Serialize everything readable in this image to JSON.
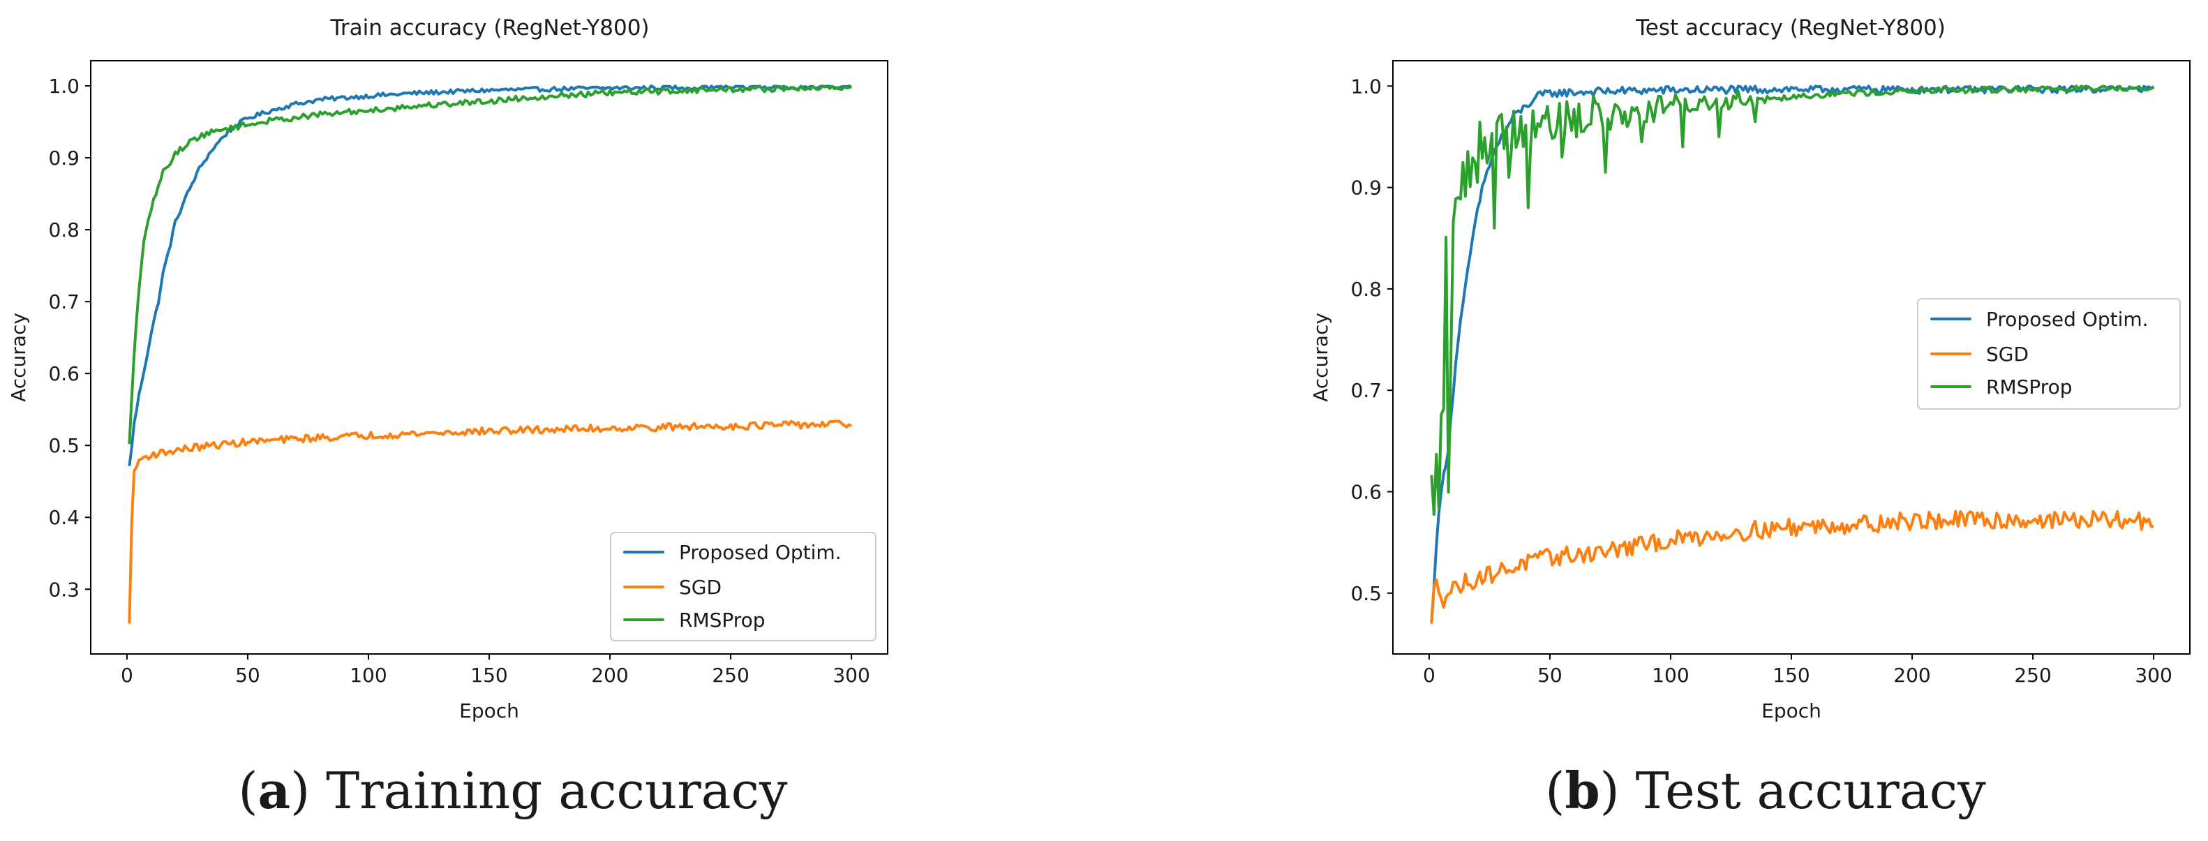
{
  "chart_data": [
    {
      "type": "line",
      "title": "Train accuracy (RegNet-Y800)",
      "xlabel": "Epoch",
      "ylabel": "Accuracy",
      "xlim": [
        -15,
        315
      ],
      "ylim": [
        0.21,
        1.035
      ],
      "xticks": [
        0,
        50,
        100,
        150,
        200,
        250,
        300
      ],
      "yticks": [
        0.3,
        0.4,
        0.5,
        0.6,
        0.7,
        0.8,
        0.9,
        1.0
      ],
      "legend_position": "lower-right",
      "series": [
        {
          "name": "Proposed Optim.",
          "color": "#1f77b4",
          "points": [
            [
              1,
              0.47
            ],
            [
              3,
              0.53
            ],
            [
              5,
              0.57
            ],
            [
              8,
              0.62
            ],
            [
              10,
              0.655
            ],
            [
              13,
              0.7
            ],
            [
              15,
              0.74
            ],
            [
              18,
              0.78
            ],
            [
              20,
              0.81
            ],
            [
              25,
              0.85
            ],
            [
              30,
              0.885
            ],
            [
              35,
              0.91
            ],
            [
              40,
              0.93
            ],
            [
              45,
              0.945
            ],
            [
              50,
              0.955
            ],
            [
              60,
              0.966
            ],
            [
              70,
              0.975
            ],
            [
              80,
              0.981
            ],
            [
              100,
              0.986
            ],
            [
              120,
              0.99
            ],
            [
              150,
              0.994
            ],
            [
              200,
              0.997
            ],
            [
              250,
              0.998
            ],
            [
              300,
              0.999
            ]
          ],
          "noise": 0.003
        },
        {
          "name": "SGD",
          "color": "#ff7f0e",
          "points": [
            [
              1,
              0.25
            ],
            [
              2,
              0.4
            ],
            [
              3,
              0.46
            ],
            [
              5,
              0.48
            ],
            [
              10,
              0.487
            ],
            [
              20,
              0.493
            ],
            [
              30,
              0.498
            ],
            [
              50,
              0.505
            ],
            [
              75,
              0.51
            ],
            [
              100,
              0.514
            ],
            [
              150,
              0.52
            ],
            [
              200,
              0.524
            ],
            [
              250,
              0.527
            ],
            [
              300,
              0.53
            ]
          ],
          "noise": 0.005
        },
        {
          "name": "RMSProp",
          "color": "#2ca02c",
          "points": [
            [
              1,
              0.5
            ],
            [
              3,
              0.63
            ],
            [
              5,
              0.72
            ],
            [
              7,
              0.78
            ],
            [
              10,
              0.83
            ],
            [
              13,
              0.86
            ],
            [
              15,
              0.88
            ],
            [
              20,
              0.905
            ],
            [
              25,
              0.92
            ],
            [
              30,
              0.93
            ],
            [
              40,
              0.94
            ],
            [
              50,
              0.946
            ],
            [
              60,
              0.952
            ],
            [
              80,
              0.96
            ],
            [
              100,
              0.966
            ],
            [
              120,
              0.972
            ],
            [
              150,
              0.979
            ],
            [
              175,
              0.986
            ],
            [
              200,
              0.99
            ],
            [
              225,
              0.993
            ],
            [
              250,
              0.995
            ],
            [
              300,
              0.998
            ]
          ],
          "noise": 0.004
        }
      ]
    },
    {
      "type": "line",
      "title": "Test accuracy (RegNet-Y800)",
      "xlabel": "Epoch",
      "ylabel": "Accuracy",
      "xlim": [
        -15,
        315
      ],
      "ylim": [
        0.44,
        1.025
      ],
      "xticks": [
        0,
        50,
        100,
        150,
        200,
        250,
        300
      ],
      "yticks": [
        0.5,
        0.6,
        0.7,
        0.8,
        0.9,
        1.0
      ],
      "legend_position": "center-right",
      "series": [
        {
          "name": "Proposed Optim.",
          "color": "#1f77b4",
          "points": [
            [
              1,
              0.47
            ],
            [
              3,
              0.55
            ],
            [
              5,
              0.6
            ],
            [
              7,
              0.63
            ],
            [
              8,
              0.645
            ],
            [
              10,
              0.7
            ],
            [
              12,
              0.75
            ],
            [
              15,
              0.8
            ],
            [
              18,
              0.85
            ],
            [
              22,
              0.9
            ],
            [
              26,
              0.93
            ],
            [
              30,
              0.95
            ],
            [
              35,
              0.97
            ],
            [
              40,
              0.98
            ],
            [
              45,
              0.99
            ],
            [
              50,
              0.993
            ],
            [
              75,
              0.995
            ],
            [
              100,
              0.996
            ],
            [
              150,
              0.997
            ],
            [
              200,
              0.997
            ],
            [
              250,
              0.997
            ],
            [
              300,
              0.998
            ]
          ],
          "noise": 0.004
        },
        {
          "name": "SGD",
          "color": "#ff7f0e",
          "points": [
            [
              1,
              0.465
            ],
            [
              2,
              0.5
            ],
            [
              3,
              0.515
            ],
            [
              6,
              0.495
            ],
            [
              10,
              0.505
            ],
            [
              20,
              0.515
            ],
            [
              30,
              0.522
            ],
            [
              40,
              0.53
            ],
            [
              50,
              0.535
            ],
            [
              75,
              0.542
            ],
            [
              100,
              0.552
            ],
            [
              125,
              0.56
            ],
            [
              150,
              0.565
            ],
            [
              175,
              0.568
            ],
            [
              200,
              0.571
            ],
            [
              225,
              0.572
            ],
            [
              250,
              0.572
            ],
            [
              275,
              0.572
            ],
            [
              300,
              0.571
            ]
          ],
          "noise": 0.009
        },
        {
          "name": "RMSProp",
          "color": "#2ca02c",
          "points": [
            [
              1,
              0.6
            ],
            [
              2,
              0.57
            ],
            [
              3,
              0.63
            ],
            [
              4,
              0.6
            ],
            [
              5,
              0.66
            ],
            [
              6,
              0.7
            ],
            [
              7,
              0.835
            ],
            [
              8,
              0.58
            ],
            [
              9,
              0.75
            ],
            [
              10,
              0.86
            ],
            [
              12,
              0.88
            ],
            [
              14,
              0.91
            ],
            [
              16,
              0.92
            ],
            [
              18,
              0.93
            ],
            [
              20,
              0.94
            ],
            [
              25,
              0.95
            ],
            [
              30,
              0.955
            ],
            [
              40,
              0.96
            ],
            [
              50,
              0.965
            ],
            [
              75,
              0.97
            ],
            [
              100,
              0.98
            ],
            [
              125,
              0.985
            ],
            [
              150,
              0.99
            ],
            [
              175,
              0.993
            ],
            [
              200,
              0.995
            ],
            [
              250,
              0.997
            ],
            [
              300,
              0.999
            ]
          ],
          "noise": 0.03,
          "noise_decay_end": 150,
          "noise_floor": 0.003,
          "spikes": [
            [
              20,
              0.905
            ],
            [
              27,
              0.86
            ],
            [
              29,
              0.97
            ],
            [
              33,
              0.91
            ],
            [
              38,
              0.97
            ],
            [
              41,
              0.88
            ],
            [
              46,
              0.96
            ],
            [
              49,
              0.98
            ],
            [
              55,
              0.93
            ],
            [
              58,
              0.97
            ],
            [
              63,
              0.955
            ],
            [
              68,
              0.99
            ],
            [
              73,
              0.915
            ],
            [
              78,
              0.98
            ],
            [
              82,
              0.96
            ],
            [
              88,
              0.945
            ],
            [
              95,
              0.99
            ],
            [
              105,
              0.94
            ],
            [
              113,
              0.985
            ],
            [
              120,
              0.95
            ],
            [
              128,
              0.995
            ],
            [
              135,
              0.965
            ]
          ]
        }
      ]
    }
  ],
  "captions": [
    {
      "label": "a",
      "text": " Training accuracy"
    },
    {
      "label": "b",
      "text": " Test accuracy"
    }
  ]
}
